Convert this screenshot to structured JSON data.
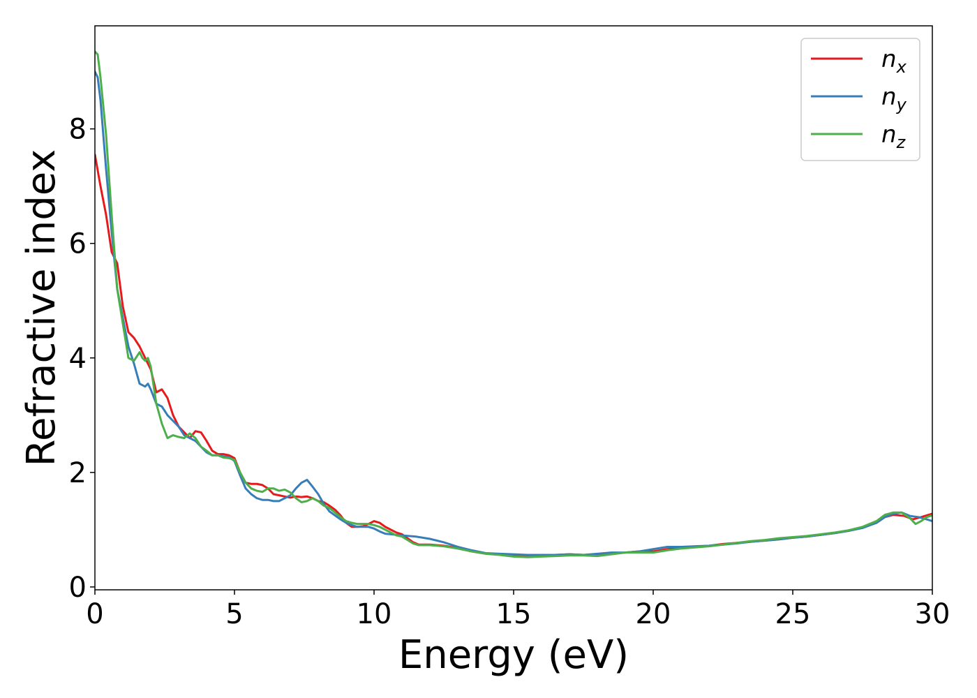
{
  "chart_data": {
    "type": "line",
    "xlabel": "Energy (eV)",
    "ylabel": "Refractive index",
    "xlim": [
      0,
      30
    ],
    "ylim": [
      -0.05,
      9.8
    ],
    "x_ticks": [
      0,
      5,
      10,
      15,
      20,
      25,
      30
    ],
    "y_ticks": [
      0,
      2,
      4,
      6,
      8
    ],
    "grid": false,
    "legend_position": "top-right",
    "series": [
      {
        "name": "n",
        "subscript": "x",
        "color": "#e41a1c",
        "points": [
          [
            0.0,
            7.55
          ],
          [
            0.2,
            7.0
          ],
          [
            0.4,
            6.5
          ],
          [
            0.6,
            5.85
          ],
          [
            0.8,
            5.65
          ],
          [
            1.0,
            4.9
          ],
          [
            1.2,
            4.45
          ],
          [
            1.4,
            4.35
          ],
          [
            1.6,
            4.2
          ],
          [
            1.8,
            4.0
          ],
          [
            2.0,
            3.8
          ],
          [
            2.2,
            3.4
          ],
          [
            2.4,
            3.45
          ],
          [
            2.6,
            3.3
          ],
          [
            2.8,
            3.0
          ],
          [
            3.0,
            2.8
          ],
          [
            3.2,
            2.7
          ],
          [
            3.4,
            2.6
          ],
          [
            3.6,
            2.72
          ],
          [
            3.8,
            2.7
          ],
          [
            4.0,
            2.55
          ],
          [
            4.2,
            2.38
          ],
          [
            4.4,
            2.32
          ],
          [
            4.6,
            2.32
          ],
          [
            4.8,
            2.3
          ],
          [
            5.0,
            2.25
          ],
          [
            5.2,
            2.0
          ],
          [
            5.4,
            1.82
          ],
          [
            5.6,
            1.8
          ],
          [
            5.8,
            1.8
          ],
          [
            6.0,
            1.78
          ],
          [
            6.2,
            1.72
          ],
          [
            6.4,
            1.62
          ],
          [
            6.6,
            1.6
          ],
          [
            6.8,
            1.58
          ],
          [
            7.0,
            1.56
          ],
          [
            7.2,
            1.58
          ],
          [
            7.4,
            1.57
          ],
          [
            7.6,
            1.58
          ],
          [
            7.8,
            1.55
          ],
          [
            8.0,
            1.5
          ],
          [
            8.2,
            1.48
          ],
          [
            8.4,
            1.42
          ],
          [
            8.6,
            1.35
          ],
          [
            8.8,
            1.25
          ],
          [
            9.0,
            1.12
          ],
          [
            9.2,
            1.05
          ],
          [
            9.4,
            1.05
          ],
          [
            9.6,
            1.06
          ],
          [
            9.8,
            1.1
          ],
          [
            10.0,
            1.15
          ],
          [
            10.2,
            1.12
          ],
          [
            10.4,
            1.05
          ],
          [
            10.6,
            1.0
          ],
          [
            10.8,
            0.95
          ],
          [
            11.0,
            0.92
          ],
          [
            11.2,
            0.85
          ],
          [
            11.4,
            0.78
          ],
          [
            11.6,
            0.74
          ],
          [
            11.8,
            0.74
          ],
          [
            12.0,
            0.74
          ],
          [
            12.5,
            0.72
          ],
          [
            13.0,
            0.68
          ],
          [
            13.5,
            0.62
          ],
          [
            14.0,
            0.58
          ],
          [
            14.5,
            0.57
          ],
          [
            15.0,
            0.55
          ],
          [
            15.5,
            0.54
          ],
          [
            16.0,
            0.55
          ],
          [
            16.5,
            0.56
          ],
          [
            17.0,
            0.57
          ],
          [
            17.5,
            0.56
          ],
          [
            18.0,
            0.56
          ],
          [
            18.5,
            0.58
          ],
          [
            19.0,
            0.6
          ],
          [
            19.5,
            0.62
          ],
          [
            20.0,
            0.62
          ],
          [
            20.5,
            0.66
          ],
          [
            21.0,
            0.68
          ],
          [
            21.5,
            0.7
          ],
          [
            22.0,
            0.72
          ],
          [
            22.5,
            0.75
          ],
          [
            23.0,
            0.77
          ],
          [
            23.5,
            0.79
          ],
          [
            24.0,
            0.81
          ],
          [
            24.5,
            0.83
          ],
          [
            25.0,
            0.86
          ],
          [
            25.5,
            0.88
          ],
          [
            26.0,
            0.91
          ],
          [
            26.5,
            0.94
          ],
          [
            27.0,
            0.98
          ],
          [
            27.5,
            1.04
          ],
          [
            28.0,
            1.12
          ],
          [
            28.3,
            1.22
          ],
          [
            28.6,
            1.26
          ],
          [
            29.0,
            1.24
          ],
          [
            29.3,
            1.18
          ],
          [
            29.6,
            1.22
          ],
          [
            30.0,
            1.28
          ]
        ]
      },
      {
        "name": "n",
        "subscript": "y",
        "color": "#377eb8",
        "points": [
          [
            0.0,
            9.0
          ],
          [
            0.1,
            8.9
          ],
          [
            0.2,
            8.5
          ],
          [
            0.4,
            7.3
          ],
          [
            0.6,
            6.2
          ],
          [
            0.8,
            5.2
          ],
          [
            1.0,
            4.7
          ],
          [
            1.2,
            4.2
          ],
          [
            1.4,
            3.9
          ],
          [
            1.6,
            3.55
          ],
          [
            1.8,
            3.5
          ],
          [
            1.9,
            3.55
          ],
          [
            2.0,
            3.45
          ],
          [
            2.2,
            3.2
          ],
          [
            2.4,
            3.15
          ],
          [
            2.6,
            3.0
          ],
          [
            2.8,
            2.9
          ],
          [
            3.0,
            2.8
          ],
          [
            3.2,
            2.65
          ],
          [
            3.4,
            2.6
          ],
          [
            3.6,
            2.55
          ],
          [
            3.8,
            2.45
          ],
          [
            4.0,
            2.35
          ],
          [
            4.2,
            2.3
          ],
          [
            4.4,
            2.3
          ],
          [
            4.6,
            2.28
          ],
          [
            4.8,
            2.27
          ],
          [
            5.0,
            2.2
          ],
          [
            5.2,
            1.95
          ],
          [
            5.4,
            1.72
          ],
          [
            5.6,
            1.62
          ],
          [
            5.8,
            1.55
          ],
          [
            6.0,
            1.52
          ],
          [
            6.2,
            1.52
          ],
          [
            6.4,
            1.5
          ],
          [
            6.6,
            1.5
          ],
          [
            6.8,
            1.55
          ],
          [
            7.0,
            1.6
          ],
          [
            7.2,
            1.72
          ],
          [
            7.4,
            1.82
          ],
          [
            7.6,
            1.87
          ],
          [
            7.8,
            1.75
          ],
          [
            8.0,
            1.62
          ],
          [
            8.2,
            1.45
          ],
          [
            8.4,
            1.32
          ],
          [
            8.6,
            1.25
          ],
          [
            8.8,
            1.18
          ],
          [
            9.0,
            1.12
          ],
          [
            9.2,
            1.08
          ],
          [
            9.4,
            1.05
          ],
          [
            9.6,
            1.05
          ],
          [
            9.8,
            1.05
          ],
          [
            10.0,
            1.02
          ],
          [
            10.2,
            0.97
          ],
          [
            10.4,
            0.93
          ],
          [
            10.6,
            0.92
          ],
          [
            10.8,
            0.91
          ],
          [
            11.0,
            0.9
          ],
          [
            11.5,
            0.88
          ],
          [
            12.0,
            0.84
          ],
          [
            12.5,
            0.78
          ],
          [
            13.0,
            0.7
          ],
          [
            13.5,
            0.64
          ],
          [
            14.0,
            0.59
          ],
          [
            14.5,
            0.58
          ],
          [
            15.0,
            0.57
          ],
          [
            15.5,
            0.56
          ],
          [
            16.0,
            0.56
          ],
          [
            16.5,
            0.56
          ],
          [
            17.0,
            0.57
          ],
          [
            17.5,
            0.56
          ],
          [
            18.0,
            0.58
          ],
          [
            18.5,
            0.6
          ],
          [
            19.0,
            0.6
          ],
          [
            19.5,
            0.62
          ],
          [
            20.0,
            0.66
          ],
          [
            20.5,
            0.7
          ],
          [
            21.0,
            0.7
          ],
          [
            21.5,
            0.71
          ],
          [
            22.0,
            0.72
          ],
          [
            22.5,
            0.74
          ],
          [
            23.0,
            0.76
          ],
          [
            23.5,
            0.79
          ],
          [
            24.0,
            0.81
          ],
          [
            24.5,
            0.83
          ],
          [
            25.0,
            0.86
          ],
          [
            25.5,
            0.88
          ],
          [
            26.0,
            0.91
          ],
          [
            26.5,
            0.94
          ],
          [
            27.0,
            0.98
          ],
          [
            27.5,
            1.03
          ],
          [
            28.0,
            1.12
          ],
          [
            28.3,
            1.22
          ],
          [
            28.6,
            1.28
          ],
          [
            28.9,
            1.3
          ],
          [
            29.2,
            1.24
          ],
          [
            29.5,
            1.22
          ],
          [
            29.8,
            1.18
          ],
          [
            30.0,
            1.15
          ]
        ]
      },
      {
        "name": "n",
        "subscript": "z",
        "color": "#4daf4a",
        "points": [
          [
            0.0,
            9.35
          ],
          [
            0.1,
            9.3
          ],
          [
            0.2,
            8.9
          ],
          [
            0.4,
            7.9
          ],
          [
            0.6,
            6.5
          ],
          [
            0.8,
            5.2
          ],
          [
            1.0,
            4.6
          ],
          [
            1.2,
            4.0
          ],
          [
            1.4,
            3.95
          ],
          [
            1.6,
            4.1
          ],
          [
            1.7,
            4.0
          ],
          [
            1.8,
            3.95
          ],
          [
            1.9,
            4.0
          ],
          [
            2.0,
            3.85
          ],
          [
            2.2,
            3.2
          ],
          [
            2.4,
            2.85
          ],
          [
            2.6,
            2.6
          ],
          [
            2.8,
            2.65
          ],
          [
            3.0,
            2.62
          ],
          [
            3.2,
            2.6
          ],
          [
            3.4,
            2.68
          ],
          [
            3.6,
            2.6
          ],
          [
            3.8,
            2.45
          ],
          [
            4.0,
            2.38
          ],
          [
            4.2,
            2.3
          ],
          [
            4.4,
            2.3
          ],
          [
            4.6,
            2.26
          ],
          [
            4.8,
            2.25
          ],
          [
            5.0,
            2.22
          ],
          [
            5.2,
            2.0
          ],
          [
            5.4,
            1.82
          ],
          [
            5.6,
            1.72
          ],
          [
            5.8,
            1.68
          ],
          [
            6.0,
            1.66
          ],
          [
            6.2,
            1.72
          ],
          [
            6.4,
            1.72
          ],
          [
            6.6,
            1.68
          ],
          [
            6.8,
            1.7
          ],
          [
            7.0,
            1.65
          ],
          [
            7.2,
            1.55
          ],
          [
            7.4,
            1.48
          ],
          [
            7.6,
            1.5
          ],
          [
            7.8,
            1.55
          ],
          [
            8.0,
            1.5
          ],
          [
            8.2,
            1.42
          ],
          [
            8.4,
            1.38
          ],
          [
            8.6,
            1.3
          ],
          [
            8.8,
            1.22
          ],
          [
            9.0,
            1.15
          ],
          [
            9.2,
            1.12
          ],
          [
            9.4,
            1.1
          ],
          [
            9.6,
            1.1
          ],
          [
            9.8,
            1.1
          ],
          [
            10.0,
            1.08
          ],
          [
            10.2,
            1.05
          ],
          [
            10.4,
            1.0
          ],
          [
            10.6,
            0.95
          ],
          [
            10.8,
            0.9
          ],
          [
            11.0,
            0.88
          ],
          [
            11.2,
            0.82
          ],
          [
            11.4,
            0.76
          ],
          [
            11.6,
            0.73
          ],
          [
            12.0,
            0.73
          ],
          [
            12.5,
            0.71
          ],
          [
            13.0,
            0.67
          ],
          [
            13.5,
            0.62
          ],
          [
            14.0,
            0.58
          ],
          [
            14.5,
            0.56
          ],
          [
            15.0,
            0.53
          ],
          [
            15.5,
            0.52
          ],
          [
            16.0,
            0.53
          ],
          [
            16.5,
            0.54
          ],
          [
            17.0,
            0.55
          ],
          [
            17.5,
            0.55
          ],
          [
            18.0,
            0.54
          ],
          [
            18.5,
            0.57
          ],
          [
            19.0,
            0.6
          ],
          [
            19.5,
            0.6
          ],
          [
            20.0,
            0.6
          ],
          [
            20.5,
            0.64
          ],
          [
            21.0,
            0.67
          ],
          [
            21.5,
            0.69
          ],
          [
            22.0,
            0.71
          ],
          [
            22.5,
            0.74
          ],
          [
            23.0,
            0.77
          ],
          [
            23.5,
            0.8
          ],
          [
            24.0,
            0.82
          ],
          [
            24.5,
            0.85
          ],
          [
            25.0,
            0.87
          ],
          [
            25.5,
            0.89
          ],
          [
            26.0,
            0.92
          ],
          [
            26.5,
            0.95
          ],
          [
            27.0,
            0.99
          ],
          [
            27.5,
            1.05
          ],
          [
            28.0,
            1.15
          ],
          [
            28.3,
            1.26
          ],
          [
            28.6,
            1.3
          ],
          [
            28.9,
            1.3
          ],
          [
            29.2,
            1.2
          ],
          [
            29.4,
            1.1
          ],
          [
            29.6,
            1.15
          ],
          [
            29.8,
            1.22
          ],
          [
            30.0,
            1.25
          ]
        ]
      }
    ]
  }
}
